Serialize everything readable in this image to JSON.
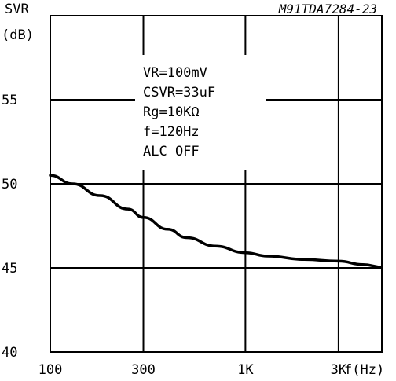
{
  "chart_data": {
    "type": "line",
    "figure_code": "M91TDA7284-23",
    "ylabel_line1": "SVR",
    "ylabel_line2": "(dB)",
    "xlabel": "f(Hz)",
    "xscale": "log",
    "xlim": [
      100,
      5000
    ],
    "ylim": [
      40,
      60
    ],
    "y_ticks": [
      40,
      45,
      50,
      55
    ],
    "y_tick_labels": [
      "40",
      "45",
      "50",
      "55"
    ],
    "x_ticks": [
      100,
      300,
      1000,
      3000
    ],
    "x_tick_labels": [
      "100",
      "300",
      "1K",
      "3K"
    ],
    "grid": true,
    "conditions": [
      "VR=100mV",
      "CSVR=33uF",
      "Rg=10KΩ",
      "f=120Hz",
      "ALC OFF"
    ],
    "series": [
      {
        "x": [
          100,
          130,
          180,
          250,
          300,
          400,
          500,
          700,
          1000,
          1300,
          2000,
          3000,
          4000,
          5000
        ],
        "y": [
          50.5,
          50.0,
          49.3,
          48.5,
          48.0,
          47.3,
          46.8,
          46.3,
          45.9,
          45.7,
          45.5,
          45.4,
          45.2,
          45.05
        ]
      }
    ]
  }
}
